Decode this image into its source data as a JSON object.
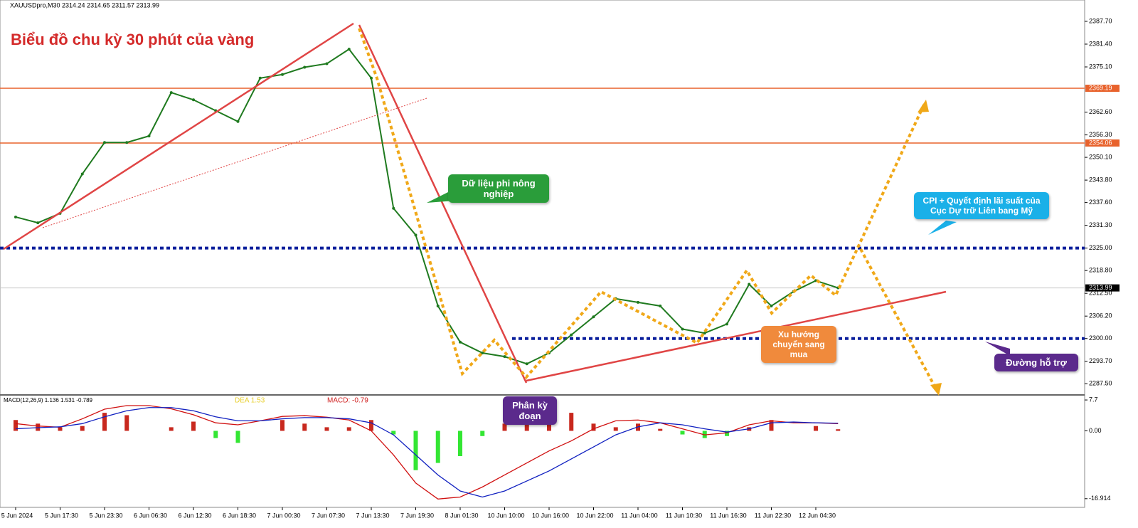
{
  "header": "XAUUSDpro,M30  2314.24 2314.65 2311.57 2313.99",
  "annotations": {
    "nfp": "Dữ liệu phi nông nghiệp",
    "cpi": "CPI + Quyết định lãi suất của Cục Dự trữ Liên bang Mỹ",
    "trend": "Xu hướng chuyển sang mua",
    "divergence": "Phân kỳ đoạn",
    "support": "Đường hỗ trợ"
  },
  "chart_data": [
    {
      "type": "line",
      "title": "Biểu đồ chu kỳ 30 phút của vàng",
      "categories": [
        "5 Jun 2024",
        null,
        "5 Jun 17:30",
        null,
        "5 Jun 23:30",
        null,
        "6 Jun 06:30",
        null,
        "6 Jun 12:30",
        null,
        "6 Jun 18:30",
        null,
        "7 Jun 00:30",
        null,
        "7 Jun 07:30",
        null,
        "7 Jun 13:30",
        null,
        "7 Jun 19:30",
        null,
        "8 Jun 01:30",
        null,
        "10 Jun 10:00",
        null,
        "10 Jun 16:00",
        null,
        "10 Jun 22:00",
        null,
        "11 Jun 04:00",
        null,
        "11 Jun 10:30",
        null,
        "11 Jun 16:30",
        null,
        "11 Jun 22:30",
        null,
        "12 Jun 04:30",
        null
      ],
      "series": [
        {
          "color": "#1f7a1f",
          "values": [
            2333.6,
            2332,
            2334.6,
            2345.5,
            2354.2,
            2354.2,
            2356,
            2368,
            2366,
            2363,
            2360,
            2372,
            2373,
            2375,
            2376,
            2380,
            2372,
            2336,
            2328.6,
            2309,
            2299,
            2296,
            2295,
            2293,
            2296,
            2301,
            2306,
            2311,
            2310,
            2309,
            2302.6,
            2301.5,
            2304,
            2315,
            2309,
            2313,
            2316,
            2314
          ]
        }
      ],
      "ylim": [
        2284.4,
        2393.6
      ],
      "yticks": [
        {
          "value": 2387.7,
          "label": "2387.70"
        },
        {
          "value": 2381.4,
          "label": "2381.40"
        },
        {
          "value": 2375.1,
          "label": "2375.10"
        },
        {
          "value": 2362.6,
          "label": "2362.60"
        },
        {
          "value": 2356.3,
          "label": "2356.30"
        },
        {
          "value": 2350.1,
          "label": "2350.10"
        },
        {
          "value": 2343.8,
          "label": "2343.80"
        },
        {
          "value": 2337.6,
          "label": "2337.60"
        },
        {
          "value": 2331.3,
          "label": "2331.30"
        },
        {
          "value": 2325,
          "label": "2325.00"
        },
        {
          "value": 2318.8,
          "label": "2318.80"
        },
        {
          "value": 2312.5,
          "label": "2312.50"
        },
        {
          "value": 2306.2,
          "label": "2306.20"
        },
        {
          "value": 2300,
          "label": "2300.00"
        },
        {
          "value": 2293.7,
          "label": "2293.70"
        },
        {
          "value": 2287.5,
          "label": "2287.50"
        }
      ],
      "levels": [
        {
          "value": 2369.19,
          "color": "#e8622c"
        },
        {
          "value": 2354.06,
          "color": "#e8622c"
        },
        {
          "value": 2313.99,
          "color": "#000000"
        }
      ],
      "support_lines": [
        {
          "value": 2325,
          "color": "#0a1f9c"
        },
        {
          "value": 2300,
          "color": "#0a1f9c"
        }
      ]
    },
    {
      "type": "macd",
      "title": "MACD(12,26,9) 1.136 1.531 -0.789",
      "dea_label": "DEA  1.53",
      "macd_label": "MACD: -0.79",
      "histogram": {
        "up_color": "#c8281e",
        "down_color": "#33e633",
        "values": [
          2.7,
          1.8,
          0.9,
          1.2,
          4.5,
          3.9,
          0,
          0.9,
          2.3,
          -1.8,
          -3,
          0,
          2.7,
          1.8,
          0.9,
          0.9,
          2.7,
          -0.9,
          -9.8,
          -8,
          -6.3,
          -1.3,
          1.8,
          2.7,
          3,
          4.5,
          1.8,
          0.9,
          1.8,
          0.5,
          -0.9,
          -1.8,
          -1.3,
          0.9,
          2.7,
          0,
          1.2,
          0.4
        ]
      },
      "series": [
        {
          "color": "#d01010",
          "values": [
            1.8,
            1.2,
            0.9,
            3,
            5.4,
            6.3,
            6.3,
            5.5,
            4,
            2,
            1.5,
            2.5,
            3.6,
            3.8,
            3.4,
            2.7,
            0,
            -6,
            -13,
            -17,
            -16.5,
            -14,
            -11,
            -8,
            -5,
            -2.5,
            0.5,
            2.5,
            2.7,
            2,
            0.5,
            -1,
            -0.5,
            1.5,
            2.5,
            2,
            2,
            1.8
          ]
        },
        {
          "color": "#1020c0",
          "values": [
            0.5,
            0.8,
            1,
            1.8,
            3.5,
            5,
            5.8,
            5.8,
            5,
            3.5,
            2.5,
            2.5,
            3,
            3.3,
            3.3,
            3,
            2,
            -1,
            -6,
            -11,
            -15,
            -16.5,
            -15,
            -12.5,
            -10,
            -7,
            -4,
            -1,
            1,
            2,
            1.5,
            0.5,
            -0.3,
            0.5,
            2,
            2.2,
            2,
            1.9
          ]
        }
      ],
      "ylim": [
        -18.9,
        8.6
      ],
      "yticks": [
        7.7,
        {
          "value": 0,
          "label": "0.00"
        },
        -16.914
      ]
    }
  ]
}
